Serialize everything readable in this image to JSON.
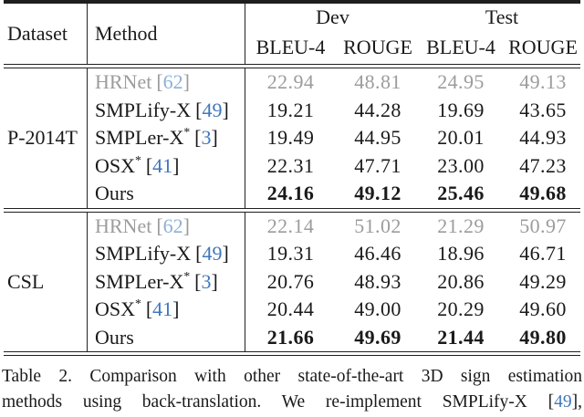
{
  "table": {
    "symbols": {
      "cite_open": "[",
      "cite_close": "]"
    },
    "header": {
      "dataset": "Dataset",
      "method": "Method",
      "groups": [
        {
          "label": "Dev"
        },
        {
          "label": "Test"
        }
      ],
      "subcols": [
        "BLEU-4",
        "ROUGE",
        "BLEU-4",
        "ROUGE"
      ]
    },
    "blocks": [
      {
        "dataset": "P-2014T",
        "rows": [
          {
            "method": "HRNet",
            "cite": "62",
            "values": [
              "22.94",
              "48.81",
              "24.95",
              "49.13"
            ]
          },
          {
            "method": "SMPLify-X",
            "cite": "49",
            "values": [
              "19.21",
              "44.28",
              "19.69",
              "43.65"
            ]
          },
          {
            "method": "SMPLer-X",
            "sup": "*",
            "cite": "3",
            "values": [
              "19.49",
              "44.95",
              "20.01",
              "44.93"
            ]
          },
          {
            "method": "OSX",
            "sup": "*",
            "cite": "41",
            "values": [
              "22.31",
              "47.71",
              "23.00",
              "47.23"
            ]
          },
          {
            "method": "Ours",
            "values": [
              "24.16",
              "49.12",
              "25.46",
              "49.68"
            ]
          }
        ]
      },
      {
        "dataset": "CSL",
        "rows": [
          {
            "method": "HRNet",
            "cite": "62",
            "values": [
              "22.14",
              "51.02",
              "21.29",
              "50.97"
            ]
          },
          {
            "method": "SMPLify-X",
            "cite": "49",
            "values": [
              "19.31",
              "46.46",
              "18.96",
              "46.71"
            ]
          },
          {
            "method": "SMPLer-X",
            "sup": "*",
            "cite": "3",
            "values": [
              "20.76",
              "48.93",
              "20.86",
              "49.29"
            ]
          },
          {
            "method": "OSX",
            "sup": "*",
            "cite": "41",
            "values": [
              "20.44",
              "49.00",
              "20.29",
              "49.60"
            ]
          },
          {
            "method": "Ours",
            "values": [
              "21.66",
              "49.69",
              "21.44",
              "49.80"
            ]
          }
        ]
      }
    ]
  },
  "caption": {
    "line1": "Table 2. Comparison with other state-of-the-art 3D sign estimation",
    "line2_pre": "methods using back-translation. We re-implement SMPLify-X ",
    "cite_open": "[",
    "cite": "49",
    "cite_close": "],"
  },
  "colors": {
    "text": "#1a1a1a",
    "gray_row": "#9c9c9c",
    "citation_blue": "#4077bb",
    "citation_blue_muted": "#8cb0d9",
    "rule": "#1f1f1f"
  }
}
